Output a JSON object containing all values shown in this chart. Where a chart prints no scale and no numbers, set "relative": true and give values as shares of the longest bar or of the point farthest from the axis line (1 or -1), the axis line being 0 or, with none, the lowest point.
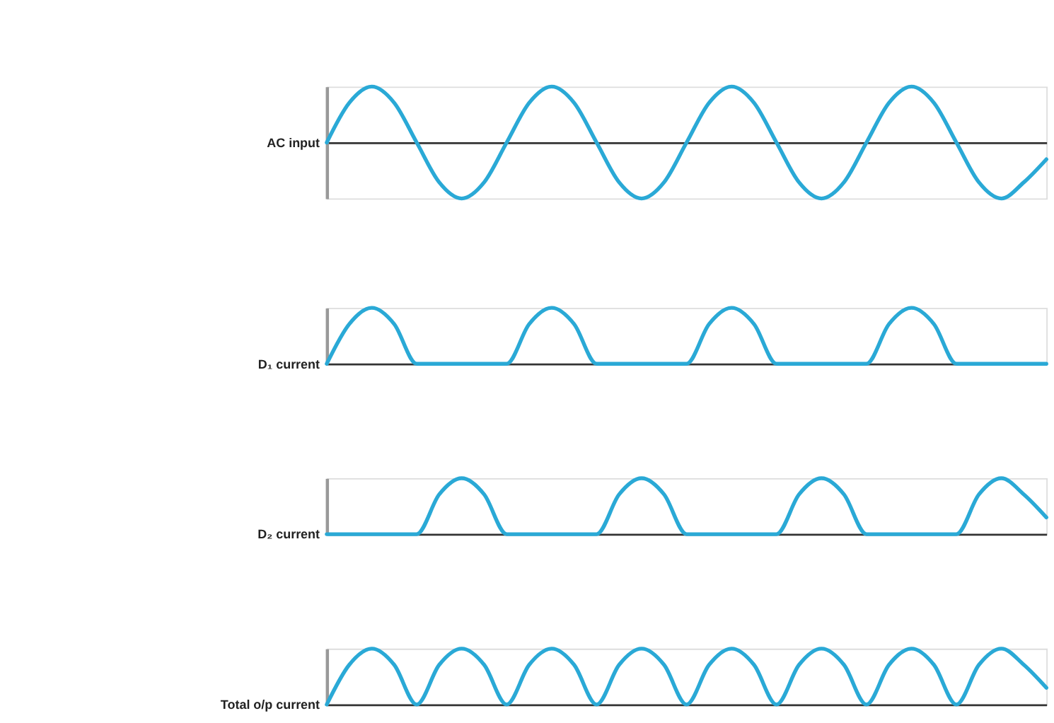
{
  "chart_data": [
    {
      "type": "line",
      "relative": true,
      "ylabel": "AC input",
      "color": "#2aa9d6",
      "tick_labels": false,
      "categories": [
        null,
        null,
        null,
        null,
        null,
        null,
        null,
        null,
        null,
        null,
        null,
        null,
        null,
        null,
        null,
        null,
        null,
        null,
        null,
        null,
        null,
        null,
        null,
        null,
        null,
        null,
        null,
        null,
        null,
        null,
        null,
        null,
        null
      ],
      "values": [
        0,
        0.71,
        1,
        0.71,
        0,
        -0.71,
        -1,
        -0.71,
        0,
        0.71,
        1,
        0.71,
        0,
        -0.71,
        -1,
        -0.71,
        0,
        0.71,
        1,
        0.71,
        0,
        -0.71,
        -1,
        -0.71,
        0,
        0.71,
        1,
        0.71,
        0,
        -0.71,
        -1,
        -0.71,
        -0.3
      ]
    },
    {
      "type": "line",
      "relative": true,
      "ylabel": "D₁ current",
      "color": "#2aa9d6",
      "tick_labels": false,
      "categories": [
        null,
        null,
        null,
        null,
        null,
        null,
        null,
        null,
        null,
        null,
        null,
        null,
        null,
        null,
        null,
        null,
        null,
        null,
        null,
        null,
        null,
        null,
        null,
        null,
        null,
        null,
        null,
        null,
        null,
        null,
        null,
        null,
        null
      ],
      "values": [
        0,
        0.71,
        1,
        0.71,
        0,
        0,
        0,
        0,
        0,
        0.71,
        1,
        0.71,
        0,
        0,
        0,
        0,
        0,
        0.71,
        1,
        0.71,
        0,
        0,
        0,
        0,
        0,
        0.71,
        1,
        0.71,
        0,
        0,
        0,
        0,
        0
      ]
    },
    {
      "type": "line",
      "relative": true,
      "ylabel": "D₂ current",
      "color": "#2aa9d6",
      "tick_labels": false,
      "categories": [
        null,
        null,
        null,
        null,
        null,
        null,
        null,
        null,
        null,
        null,
        null,
        null,
        null,
        null,
        null,
        null,
        null,
        null,
        null,
        null,
        null,
        null,
        null,
        null,
        null,
        null,
        null,
        null,
        null,
        null,
        null,
        null,
        null
      ],
      "values": [
        0,
        0,
        0,
        0,
        0,
        0.71,
        1,
        0.71,
        0,
        0,
        0,
        0,
        0,
        0.71,
        1,
        0.71,
        0,
        0,
        0,
        0,
        0,
        0.71,
        1,
        0.71,
        0,
        0,
        0,
        0,
        0,
        0.71,
        1,
        0.71,
        0.3
      ]
    },
    {
      "type": "line",
      "relative": true,
      "ylabel": "Total o/p current",
      "color": "#2aa9d6",
      "tick_labels": false,
      "categories": [
        null,
        null,
        null,
        null,
        null,
        null,
        null,
        null,
        null,
        null,
        null,
        null,
        null,
        null,
        null,
        null,
        null,
        null,
        null,
        null,
        null,
        null,
        null,
        null,
        null,
        null,
        null,
        null,
        null,
        null,
        null,
        null,
        null
      ],
      "values": [
        0,
        0.71,
        1,
        0.71,
        0,
        0.71,
        1,
        0.71,
        0,
        0.71,
        1,
        0.71,
        0,
        0.71,
        1,
        0.71,
        0,
        0.71,
        1,
        0.71,
        0,
        0.71,
        1,
        0.71,
        0,
        0.71,
        1,
        0.71,
        0,
        0.71,
        1,
        0.71,
        0.3
      ]
    }
  ]
}
